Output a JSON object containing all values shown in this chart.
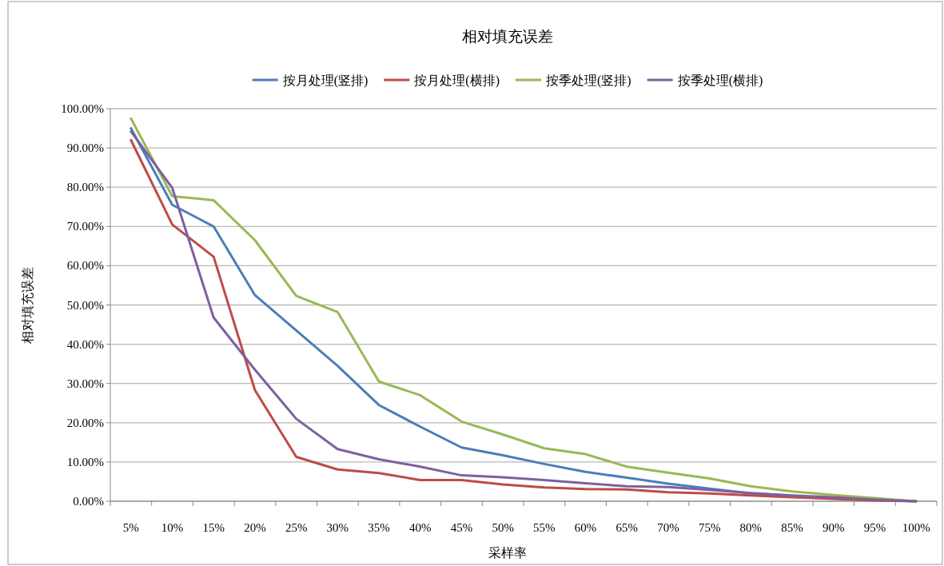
{
  "chart_data": {
    "type": "line",
    "title": "相对填充误差",
    "xlabel": "采样率",
    "ylabel": "相对填充误差",
    "categories": [
      "5%",
      "10%",
      "15%",
      "20%",
      "25%",
      "30%",
      "35%",
      "40%",
      "45%",
      "50%",
      "55%",
      "60%",
      "65%",
      "70%",
      "75%",
      "80%",
      "85%",
      "90%",
      "95%",
      "100%"
    ],
    "series": [
      {
        "name": "按月处理(竖排)",
        "color": "#4a7ebb",
        "values": [
          95,
          75.5,
          70,
          52.5,
          43.5,
          34.5,
          24.5,
          19,
          13.7,
          11.7,
          9.5,
          7.5,
          6,
          4.5,
          3.2,
          2,
          1.3,
          0.8,
          0.4,
          0
        ]
      },
      {
        "name": "按月处理(横排)",
        "color": "#be4b48",
        "values": [
          92,
          70.5,
          62.3,
          28.3,
          11.3,
          8.1,
          7.2,
          5.4,
          5.4,
          4.3,
          3.5,
          3.1,
          3,
          2.3,
          2,
          1.5,
          1,
          0.6,
          0.2,
          0
        ]
      },
      {
        "name": "按季处理(竖排)",
        "color": "#98b954",
        "values": [
          97.5,
          77.7,
          76.7,
          66.5,
          52.3,
          48.2,
          30.5,
          27,
          20.3,
          17,
          13.5,
          12,
          8.8,
          7.3,
          5.8,
          3.8,
          2.5,
          1.6,
          0.8,
          0
        ]
      },
      {
        "name": "按季处理(横排)",
        "color": "#7d60a0",
        "values": [
          94.2,
          79.8,
          46.8,
          33.5,
          21,
          13.3,
          10.7,
          8.8,
          6.6,
          6.1,
          5.4,
          4.6,
          3.8,
          3.6,
          2.9,
          2.1,
          1.5,
          1,
          0.4,
          0
        ]
      }
    ],
    "ylim": [
      0,
      100
    ],
    "yticks": [
      {
        "value": 0,
        "label": "0.00%"
      },
      {
        "value": 10,
        "label": "10.00%"
      },
      {
        "value": 20,
        "label": "20.00%"
      },
      {
        "value": 30,
        "label": "30.00%"
      },
      {
        "value": 40,
        "label": "40.00%"
      },
      {
        "value": 50,
        "label": "50.00%"
      },
      {
        "value": 60,
        "label": "60.00%"
      },
      {
        "value": 70,
        "label": "70.00%"
      },
      {
        "value": 80,
        "label": "80.00%"
      },
      {
        "value": 90,
        "label": "90.00%"
      },
      {
        "value": 100,
        "label": "100.00%"
      }
    ],
    "grid": "y",
    "legend": "top",
    "marker": "none",
    "line_style": "solid"
  }
}
